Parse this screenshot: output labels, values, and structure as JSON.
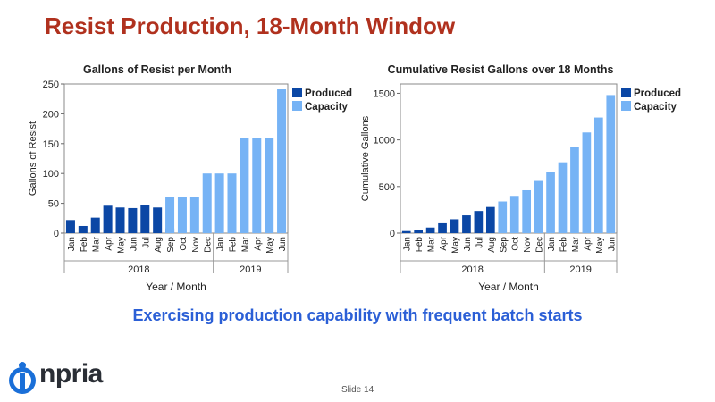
{
  "slide": {
    "title": "Resist Production, 18-Month Window",
    "subtitle": "Exercising production capability with frequent batch starts",
    "logo_text": "npria",
    "logo_letter": "i",
    "slide_number": "Slide 14"
  },
  "colors": {
    "title": "#b0311e",
    "produced": "#0b47a5",
    "capacity": "#76b3f5",
    "subtitle": "#2b5fd6"
  },
  "chart_data": [
    {
      "type": "bar",
      "title": "Gallons of Resist per Month",
      "xlabel": "Year / Month",
      "ylabel": "Gallons of Resist",
      "ylim": [
        0,
        250
      ],
      "yticks": [
        0,
        50,
        100,
        150,
        200,
        250
      ],
      "categories": [
        "Jan",
        "Feb",
        "Mar",
        "Apr",
        "May",
        "Jun",
        "Jul",
        "Aug",
        "Sep",
        "Oct",
        "Nov",
        "Dec",
        "Jan",
        "Feb",
        "Mar",
        "Apr",
        "May",
        "Jun"
      ],
      "years": [
        {
          "label": "2018",
          "start": 0,
          "end": 11
        },
        {
          "label": "2019",
          "start": 12,
          "end": 17
        }
      ],
      "legend": [
        "Produced",
        "Capacity"
      ],
      "series": [
        {
          "name": "Produced",
          "values": [
            22,
            12,
            26,
            46,
            43,
            42,
            47,
            43,
            8,
            0,
            0,
            0,
            0,
            0,
            0,
            0,
            0,
            0
          ]
        },
        {
          "name": "Capacity",
          "values": [
            0,
            0,
            0,
            0,
            0,
            0,
            0,
            0,
            60,
            60,
            60,
            100,
            100,
            100,
            160,
            160,
            160,
            241
          ]
        }
      ]
    },
    {
      "type": "bar",
      "title": "Cumulative Resist Gallons over 18 Months",
      "xlabel": "Year / Month",
      "ylabel": "Cumulative Gallons",
      "ylim": [
        0,
        1600
      ],
      "yticks": [
        0,
        500,
        1000,
        1500
      ],
      "categories": [
        "Jan",
        "Feb",
        "Mar",
        "Apr",
        "May",
        "Jun",
        "Jul",
        "Aug",
        "Sep",
        "Oct",
        "Nov",
        "Dec",
        "Jan",
        "Feb",
        "Mar",
        "Apr",
        "May",
        "Jun"
      ],
      "years": [
        {
          "label": "2018",
          "start": 0,
          "end": 11
        },
        {
          "label": "2019",
          "start": 12,
          "end": 17
        }
      ],
      "legend": [
        "Produced",
        "Capacity"
      ],
      "series": [
        {
          "name": "Produced",
          "values": [
            22,
            34,
            60,
            106,
            149,
            191,
            238,
            281,
            0,
            0,
            0,
            0,
            0,
            0,
            0,
            0,
            0,
            0
          ]
        },
        {
          "name": "Capacity",
          "values": [
            0,
            0,
            0,
            0,
            0,
            0,
            0,
            0,
            340,
            400,
            460,
            560,
            660,
            760,
            920,
            1080,
            1240,
            1481
          ]
        }
      ]
    }
  ]
}
